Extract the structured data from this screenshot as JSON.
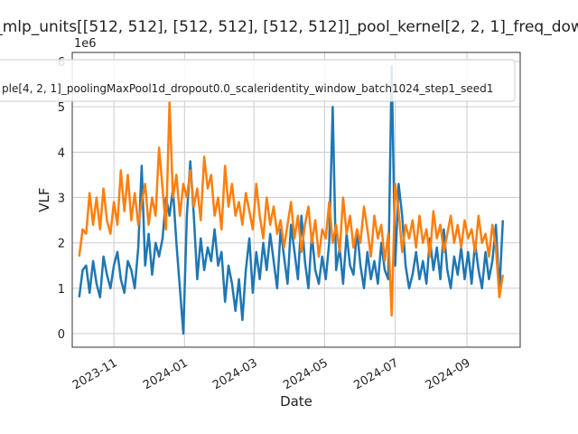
{
  "chart_data": {
    "type": "line",
    "title": "_mlp_units[[512, 512], [512, 512], [512, 512]]_pool_kernel[2, 2, 1]_freq_dow",
    "xlabel": "Date",
    "ylabel": "VLF",
    "y_multiplier": "1e6",
    "x_ticks": [
      "2023-11",
      "2024-01",
      "2024-03",
      "2024-05",
      "2024-07",
      "2024-09"
    ],
    "y_ticks": [
      "0",
      "1",
      "2",
      "3",
      "4",
      "5",
      "6"
    ],
    "xlim": [
      "2023-09-26",
      "2024-10-17"
    ],
    "ylim": [
      -0.3,
      6.2
    ],
    "grid": true,
    "legend_position": "top-left",
    "colors": {
      "series_1": "#1f77b4",
      "series_2": "#ff7f0e"
    },
    "series": [
      {
        "name": "",
        "color": "#1f77b4",
        "x": [
          "2023-10-02",
          "2023-10-05",
          "2023-10-08",
          "2023-10-11",
          "2023-10-14",
          "2023-10-17",
          "2023-10-20",
          "2023-10-23",
          "2023-10-26",
          "2023-10-29",
          "2023-11-01",
          "2023-11-04",
          "2023-11-07",
          "2023-11-10",
          "2023-11-13",
          "2023-11-16",
          "2023-11-19",
          "2023-11-22",
          "2023-11-25",
          "2023-11-28",
          "2023-12-01",
          "2023-12-04",
          "2023-12-07",
          "2023-12-10",
          "2023-12-13",
          "2023-12-16",
          "2023-12-19",
          "2023-12-22",
          "2023-12-25",
          "2023-12-28",
          "2023-12-31",
          "2024-01-03",
          "2024-01-06",
          "2024-01-09",
          "2024-01-12",
          "2024-01-15",
          "2024-01-18",
          "2024-01-21",
          "2024-01-24",
          "2024-01-27",
          "2024-01-30",
          "2024-02-02",
          "2024-02-05",
          "2024-02-08",
          "2024-02-11",
          "2024-02-14",
          "2024-02-17",
          "2024-02-20",
          "2024-02-23",
          "2024-02-26",
          "2024-02-29",
          "2024-03-03",
          "2024-03-06",
          "2024-03-09",
          "2024-03-12",
          "2024-03-15",
          "2024-03-18",
          "2024-03-21",
          "2024-03-24",
          "2024-03-27",
          "2024-03-30",
          "2024-04-02",
          "2024-04-05",
          "2024-04-08",
          "2024-04-11",
          "2024-04-14",
          "2024-04-17",
          "2024-04-20",
          "2024-04-23",
          "2024-04-26",
          "2024-04-29",
          "2024-05-02",
          "2024-05-05",
          "2024-05-08",
          "2024-05-11",
          "2024-05-14",
          "2024-05-17",
          "2024-05-20",
          "2024-05-23",
          "2024-05-26",
          "2024-05-29",
          "2024-06-01",
          "2024-06-04",
          "2024-06-07",
          "2024-06-10",
          "2024-06-13",
          "2024-06-16",
          "2024-06-19",
          "2024-06-22",
          "2024-06-25",
          "2024-06-28",
          "2024-07-01",
          "2024-07-04",
          "2024-07-07",
          "2024-07-10",
          "2024-07-13",
          "2024-07-16",
          "2024-07-19",
          "2024-07-22",
          "2024-07-25",
          "2024-07-28",
          "2024-07-31",
          "2024-08-03",
          "2024-08-06",
          "2024-08-09",
          "2024-08-12",
          "2024-08-15",
          "2024-08-18",
          "2024-08-21",
          "2024-08-24",
          "2024-08-27",
          "2024-08-30",
          "2024-09-02",
          "2024-09-05",
          "2024-09-08",
          "2024-09-11",
          "2024-09-14",
          "2024-09-17",
          "2024-09-20",
          "2024-09-23",
          "2024-09-26",
          "2024-09-29",
          "2024-10-02"
        ],
        "values": [
          0.8,
          1.4,
          1.5,
          0.9,
          1.6,
          1.1,
          0.8,
          1.7,
          1.3,
          1.0,
          1.5,
          1.8,
          1.2,
          0.9,
          1.6,
          1.4,
          1.0,
          1.9,
          3.7,
          1.5,
          2.2,
          1.3,
          2.0,
          1.7,
          2.1,
          3.0,
          2.6,
          3.2,
          2.0,
          1.0,
          0.0,
          2.6,
          3.8,
          2.6,
          1.2,
          2.1,
          1.4,
          1.9,
          1.6,
          2.3,
          1.5,
          1.8,
          0.7,
          1.5,
          1.1,
          0.5,
          1.2,
          0.3,
          1.4,
          2.1,
          0.9,
          1.8,
          1.2,
          2.0,
          1.4,
          2.2,
          1.6,
          1.0,
          2.3,
          1.7,
          1.1,
          2.4,
          1.8,
          1.2,
          2.6,
          1.6,
          1.0,
          2.2,
          1.4,
          1.1,
          1.7,
          1.2,
          2.0,
          5.0,
          1.4,
          1.9,
          1.1,
          2.2,
          1.5,
          1.3,
          2.3,
          1.5,
          1.0,
          1.8,
          1.2,
          1.6,
          1.1,
          2.0,
          1.4,
          1.2,
          5.9,
          1.5,
          3.3,
          2.6,
          1.5,
          1.0,
          1.3,
          1.8,
          1.2,
          1.6,
          1.1,
          2.1,
          1.4,
          1.9,
          1.2,
          2.3,
          1.4,
          1.0,
          1.7,
          1.3,
          1.9,
          1.2,
          1.8,
          1.1,
          2.0,
          1.4,
          1.0,
          1.8,
          1.2,
          1.6,
          2.4,
          0.9,
          2.5
        ]
      },
      {
        "name": "",
        "color": "#ff7f0e",
        "x": [
          "2023-10-02",
          "2023-10-05",
          "2023-10-08",
          "2023-10-11",
          "2023-10-14",
          "2023-10-17",
          "2023-10-20",
          "2023-10-23",
          "2023-10-26",
          "2023-10-29",
          "2023-11-01",
          "2023-11-04",
          "2023-11-07",
          "2023-11-10",
          "2023-11-13",
          "2023-11-16",
          "2023-11-19",
          "2023-11-22",
          "2023-11-25",
          "2023-11-28",
          "2023-12-01",
          "2023-12-04",
          "2023-12-07",
          "2023-12-10",
          "2023-12-13",
          "2023-12-16",
          "2023-12-19",
          "2023-12-22",
          "2023-12-25",
          "2023-12-28",
          "2023-12-31",
          "2024-01-03",
          "2024-01-06",
          "2024-01-09",
          "2024-01-12",
          "2024-01-15",
          "2024-01-18",
          "2024-01-21",
          "2024-01-24",
          "2024-01-27",
          "2024-01-30",
          "2024-02-02",
          "2024-02-05",
          "2024-02-08",
          "2024-02-11",
          "2024-02-14",
          "2024-02-17",
          "2024-02-20",
          "2024-02-23",
          "2024-02-26",
          "2024-02-29",
          "2024-03-03",
          "2024-03-06",
          "2024-03-09",
          "2024-03-12",
          "2024-03-15",
          "2024-03-18",
          "2024-03-21",
          "2024-03-24",
          "2024-03-27",
          "2024-03-30",
          "2024-04-02",
          "2024-04-05",
          "2024-04-08",
          "2024-04-11",
          "2024-04-14",
          "2024-04-17",
          "2024-04-20",
          "2024-04-23",
          "2024-04-26",
          "2024-04-29",
          "2024-05-02",
          "2024-05-05",
          "2024-05-08",
          "2024-05-11",
          "2024-05-14",
          "2024-05-17",
          "2024-05-20",
          "2024-05-23",
          "2024-05-26",
          "2024-05-29",
          "2024-06-01",
          "2024-06-04",
          "2024-06-07",
          "2024-06-10",
          "2024-06-13",
          "2024-06-16",
          "2024-06-19",
          "2024-06-22",
          "2024-06-25",
          "2024-06-28",
          "2024-07-01",
          "2024-07-04",
          "2024-07-07",
          "2024-07-10",
          "2024-07-13",
          "2024-07-16",
          "2024-07-19",
          "2024-07-22",
          "2024-07-25",
          "2024-07-28",
          "2024-07-31",
          "2024-08-03",
          "2024-08-06",
          "2024-08-09",
          "2024-08-12",
          "2024-08-15",
          "2024-08-18",
          "2024-08-21",
          "2024-08-24",
          "2024-08-27",
          "2024-08-30",
          "2024-09-02",
          "2024-09-05",
          "2024-09-08",
          "2024-09-11",
          "2024-09-14",
          "2024-09-17",
          "2024-09-20",
          "2024-09-23",
          "2024-09-26",
          "2024-09-29",
          "2024-10-02"
        ],
        "values": [
          1.7,
          2.3,
          2.2,
          3.1,
          2.4,
          3.0,
          2.3,
          3.2,
          2.5,
          2.2,
          2.9,
          2.4,
          3.6,
          2.7,
          3.5,
          2.5,
          3.1,
          2.4,
          2.9,
          3.3,
          2.4,
          3.0,
          2.6,
          4.1,
          3.2,
          2.3,
          5.1,
          3.0,
          3.5,
          2.6,
          3.3,
          3.0,
          3.6,
          2.8,
          3.2,
          2.5,
          3.9,
          3.2,
          3.5,
          2.6,
          3.0,
          2.3,
          3.7,
          2.8,
          3.3,
          2.6,
          2.9,
          2.4,
          3.1,
          2.7,
          2.3,
          3.3,
          2.6,
          2.1,
          3.0,
          2.4,
          2.8,
          2.2,
          2.5,
          1.9,
          2.4,
          2.9,
          2.1,
          2.6,
          1.8,
          2.4,
          2.8,
          2.0,
          2.5,
          1.7,
          2.3,
          2.1,
          2.9,
          2.0,
          2.4,
          1.8,
          3.0,
          2.2,
          2.6,
          1.9,
          2.3,
          2.0,
          2.8,
          2.3,
          1.7,
          2.6,
          2.1,
          2.4,
          1.6,
          2.2,
          0.4,
          3.3,
          2.7,
          1.8,
          2.4,
          2.1,
          2.5,
          1.9,
          2.6,
          2.0,
          2.3,
          1.7,
          2.7,
          2.1,
          2.4,
          1.8,
          2.2,
          2.6,
          2.0,
          2.4,
          1.9,
          2.5,
          2.1,
          2.3,
          1.8,
          2.6,
          2.0,
          2.2,
          1.7,
          2.4,
          1.9,
          0.8,
          1.3
        ]
      }
    ]
  },
  "legend": {
    "text": "ple[4, 2, 1]_poolingMaxPool1d_dropout0.0_scaleridentity_window_batch1024_step1_seed1"
  }
}
